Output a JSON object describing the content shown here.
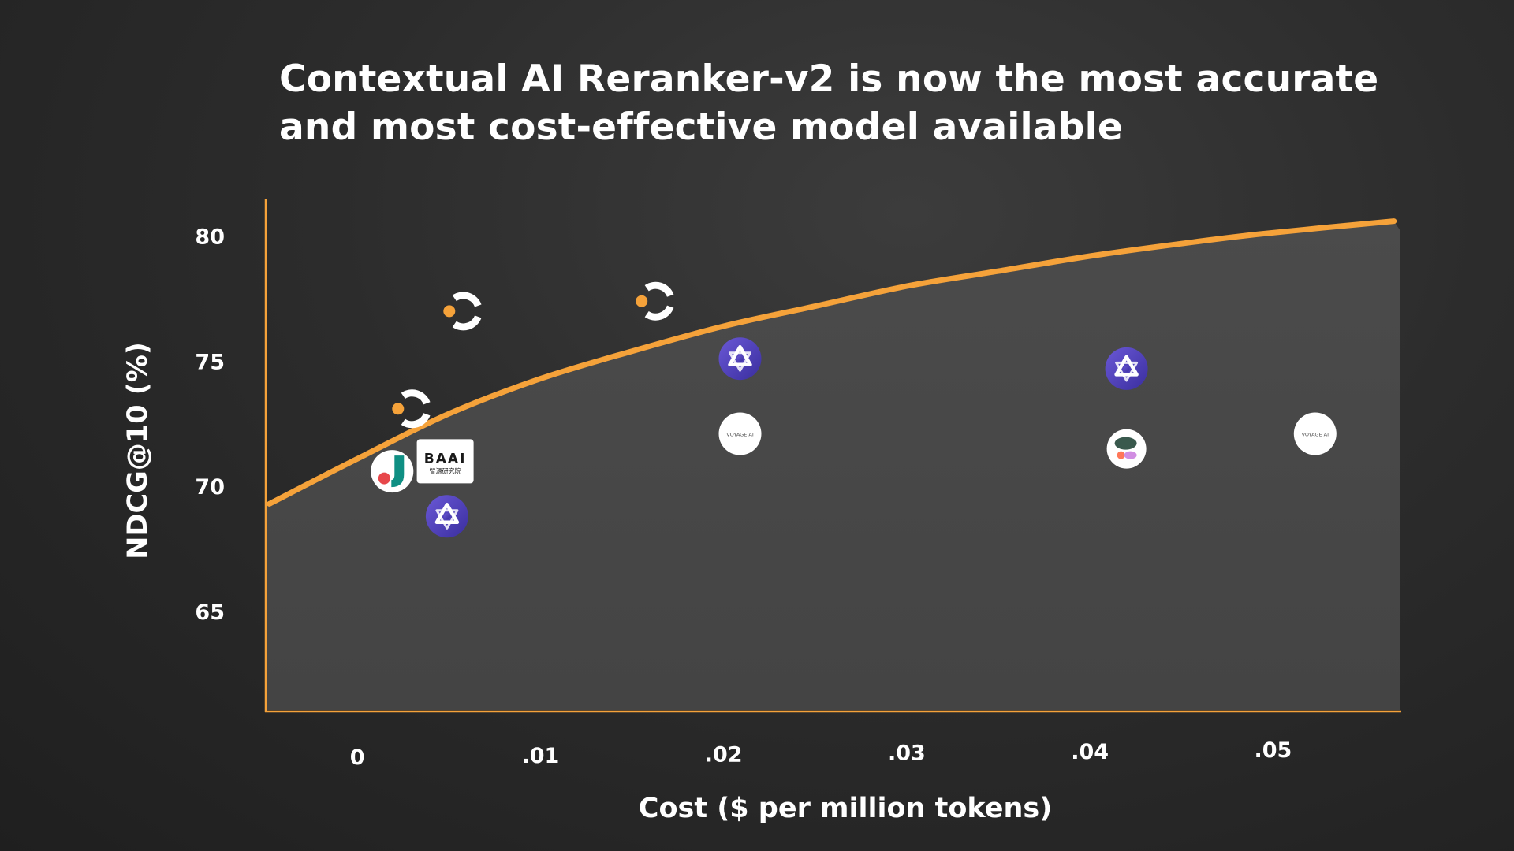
{
  "title_lines": [
    "Contextual AI Reranker-v2 is now the most accurate",
    "and most cost-effective model available"
  ],
  "colors": {
    "background": "#2c2c2c",
    "axis": "#f5a23a",
    "frontier": "#f5a23a",
    "frontier_fill": "#4a4a4a",
    "text": "#ffffff"
  },
  "chart_data": {
    "type": "scatter",
    "title": "Contextual AI Reranker-v2 is now the most accurate and most cost-effective model available",
    "xlabel": "Cost ($ per million tokens)",
    "ylabel": "NDCG@10 (%)",
    "xlim": [
      -0.005,
      0.057
    ],
    "ylim": [
      61,
      81.5
    ],
    "x_ticks": [
      {
        "value": 0,
        "label": "0"
      },
      {
        "value": 0.01,
        "label": ".01"
      },
      {
        "value": 0.02,
        "label": ".02"
      },
      {
        "value": 0.03,
        "label": ".03"
      },
      {
        "value": 0.04,
        "label": ".04"
      },
      {
        "value": 0.05,
        "label": ".05"
      }
    ],
    "y_ticks": [
      {
        "value": 65,
        "label": "65"
      },
      {
        "value": 70,
        "label": "70"
      },
      {
        "value": 75,
        "label": "75"
      },
      {
        "value": 80,
        "label": "80"
      }
    ],
    "grid": false,
    "frontier_curve": [
      {
        "x": -0.0048,
        "y": 69.3
      },
      {
        "x": 0.0,
        "y": 71.1
      },
      {
        "x": 0.005,
        "y": 72.9
      },
      {
        "x": 0.01,
        "y": 74.3
      },
      {
        "x": 0.015,
        "y": 75.4
      },
      {
        "x": 0.02,
        "y": 76.4
      },
      {
        "x": 0.025,
        "y": 77.2
      },
      {
        "x": 0.03,
        "y": 78.0
      },
      {
        "x": 0.035,
        "y": 78.6
      },
      {
        "x": 0.04,
        "y": 79.2
      },
      {
        "x": 0.045,
        "y": 79.7
      },
      {
        "x": 0.0495,
        "y": 80.1
      },
      {
        "x": 0.0566,
        "y": 80.6
      }
    ],
    "points": [
      {
        "icon": "contextual-ai-logo",
        "x": 0.0058,
        "y": 77.0
      },
      {
        "icon": "contextual-ai-logo",
        "x": 0.0163,
        "y": 77.4
      },
      {
        "icon": "contextual-ai-logo",
        "x": 0.003,
        "y": 73.1
      },
      {
        "icon": "jina-logo",
        "x": 0.0019,
        "y": 70.6
      },
      {
        "icon": "baai-logo",
        "x": 0.0048,
        "y": 71.0
      },
      {
        "icon": "qwen-logo",
        "x": 0.0049,
        "y": 68.8
      },
      {
        "icon": "qwen-logo",
        "x": 0.0209,
        "y": 75.1
      },
      {
        "icon": "qwen-logo",
        "x": 0.042,
        "y": 74.7
      },
      {
        "icon": "voyage-ai-logo",
        "x": 0.0209,
        "y": 72.1
      },
      {
        "icon": "cohere-logo",
        "x": 0.042,
        "y": 71.5
      },
      {
        "icon": "voyage-ai-logo",
        "x": 0.0523,
        "y": 72.1
      }
    ]
  },
  "logo_text": {
    "baai_mark": "BAAI",
    "baai_sub": "智源研究院",
    "voyage": "VOYAGE AI"
  }
}
